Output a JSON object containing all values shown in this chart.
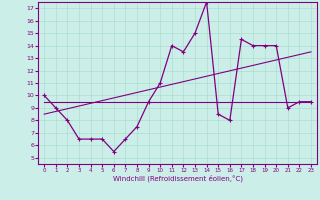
{
  "xlabel": "Windchill (Refroidissement éolien,°C)",
  "bg_color": "#cceee8",
  "line_color": "#800080",
  "grid_color": "#aaddcc",
  "x_ticks": [
    0,
    1,
    2,
    3,
    4,
    5,
    6,
    7,
    8,
    9,
    10,
    11,
    12,
    13,
    14,
    15,
    16,
    17,
    18,
    19,
    20,
    21,
    22,
    23
  ],
  "y_ticks": [
    5,
    6,
    7,
    8,
    9,
    10,
    11,
    12,
    13,
    14,
    15,
    16,
    17
  ],
  "xlim": [
    -0.5,
    23.5
  ],
  "ylim": [
    4.5,
    17.5
  ],
  "series1": {
    "x": [
      0,
      1,
      2,
      3,
      4,
      5,
      6,
      7,
      8,
      9,
      10,
      11,
      12,
      13,
      14,
      15,
      16,
      17,
      18,
      19,
      20,
      21,
      22,
      23
    ],
    "y": [
      10,
      9,
      8,
      6.5,
      6.5,
      6.5,
      5.5,
      6.5,
      7.5,
      9.5,
      11,
      14,
      13.5,
      15,
      17.5,
      8.5,
      8,
      14.5,
      14,
      14,
      14,
      9,
      9.5,
      9.5
    ]
  },
  "trend1": {
    "x": [
      0,
      23
    ],
    "y": [
      8.5,
      13.5
    ]
  },
  "trend2": {
    "x": [
      0,
      23
    ],
    "y": [
      9.5,
      9.5
    ]
  }
}
